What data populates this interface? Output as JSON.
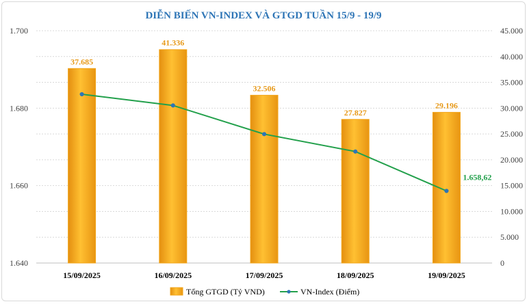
{
  "chart_data": {
    "type": "bar+line",
    "title": "DIỄN BIẾN VN-INDEX VÀ GTGD TUẦN 15/9 - 19/9",
    "categories": [
      "15/09/2025",
      "16/09/2025",
      "17/09/2025",
      "18/09/2025",
      "19/09/2025"
    ],
    "series": [
      {
        "name": "Tổng GTGD (Tỷ VND)",
        "type": "bar",
        "axis": "right",
        "values": [
          37685,
          41336,
          32506,
          27827,
          29196
        ],
        "labels": [
          "37.685",
          "41.336",
          "32.506",
          "27.827",
          "29.196"
        ],
        "color": "#f5a81c"
      },
      {
        "name": "VN-Index (Điểm)",
        "type": "line",
        "axis": "left",
        "values": [
          1683.6,
          1680.7,
          1673.3,
          1668.8,
          1658.62
        ],
        "labels": [
          "",
          "",
          "",
          "",
          "1.658,62"
        ],
        "color": "#22a04b"
      }
    ],
    "left_axis": {
      "min": 1640,
      "max": 1700,
      "ticks": [
        "1.640",
        "1.660",
        "1.680",
        "1.700"
      ],
      "tick_values": [
        1640,
        1660,
        1680,
        1700
      ]
    },
    "right_axis": {
      "min": 0,
      "max": 45000,
      "ticks": [
        "0",
        "5.000",
        "10.000",
        "15.000",
        "20.000",
        "25.000",
        "30.000",
        "35.000",
        "40.000",
        "45.000"
      ],
      "tick_values": [
        0,
        5000,
        10000,
        15000,
        20000,
        25000,
        30000,
        35000,
        40000,
        45000
      ]
    },
    "grid": true,
    "legend_position": "bottom"
  }
}
